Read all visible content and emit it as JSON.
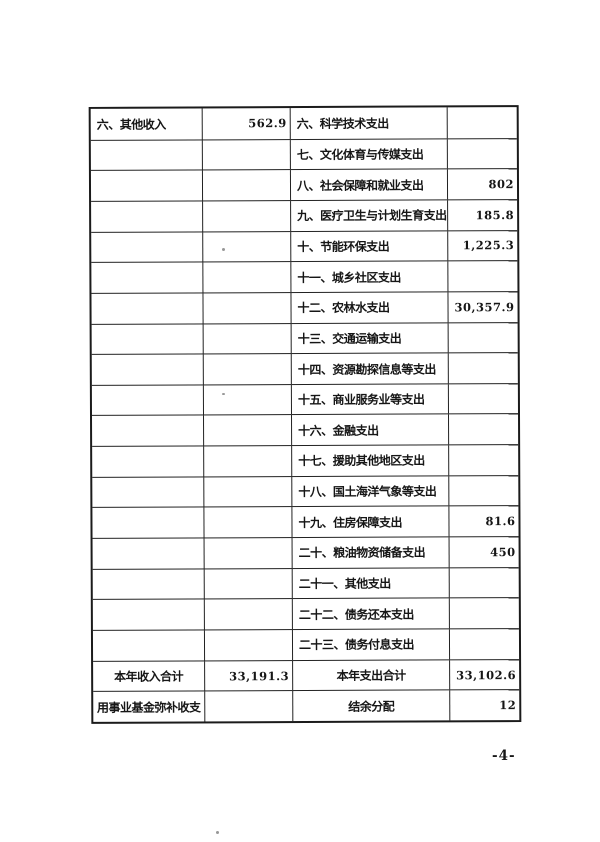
{
  "page": {
    "page_number": "-4-",
    "background_color": "#ffffff",
    "border_color": "#1b1b1b"
  },
  "table": {
    "columns": [
      "income_label",
      "income_value",
      "expenditure_label",
      "expenditure_value"
    ],
    "rows": [
      {
        "left_label": "六、其他收入",
        "left_value": "562.9",
        "right_label": "六、科学技术支出",
        "right_value": ""
      },
      {
        "left_label": "",
        "left_value": "",
        "right_label": "七、文化体育与传媒支出",
        "right_value": ""
      },
      {
        "left_label": "",
        "left_value": "",
        "right_label": "八、社会保障和就业支出",
        "right_value": "802"
      },
      {
        "left_label": "",
        "left_value": "",
        "right_label": "九、医疗卫生与计划生育支出",
        "right_value": "185.8"
      },
      {
        "left_label": "",
        "left_value": "",
        "right_label": "十、节能环保支出",
        "right_value": "1,225.3"
      },
      {
        "left_label": "",
        "left_value": "",
        "right_label": "十一、城乡社区支出",
        "right_value": ""
      },
      {
        "left_label": "",
        "left_value": "",
        "right_label": "十二、农林水支出",
        "right_value": "30,357.9"
      },
      {
        "left_label": "",
        "left_value": "",
        "right_label": "十三、交通运输支出",
        "right_value": ""
      },
      {
        "left_label": "",
        "left_value": "",
        "right_label": "十四、资源勘探信息等支出",
        "right_value": ""
      },
      {
        "left_label": "",
        "left_value": "",
        "right_label": "十五、商业服务业等支出",
        "right_value": ""
      },
      {
        "left_label": "",
        "left_value": "",
        "right_label": "十六、金融支出",
        "right_value": ""
      },
      {
        "left_label": "",
        "left_value": "",
        "right_label": "十七、援助其他地区支出",
        "right_value": ""
      },
      {
        "left_label": "",
        "left_value": "",
        "right_label": "十八、国土海洋气象等支出",
        "right_value": ""
      },
      {
        "left_label": "",
        "left_value": "",
        "right_label": "十九、住房保障支出",
        "right_value": "81.6"
      },
      {
        "left_label": "",
        "left_value": "",
        "right_label": "二十、粮油物资储备支出",
        "right_value": "450"
      },
      {
        "left_label": "",
        "left_value": "",
        "right_label": "二十一、其他支出",
        "right_value": ""
      },
      {
        "left_label": "",
        "left_value": "",
        "right_label": "二十二、债务还本支出",
        "right_value": ""
      },
      {
        "left_label": "",
        "left_value": "",
        "right_label": "二十三、债务付息支出",
        "right_value": ""
      },
      {
        "left_label": "本年收入合计",
        "left_value": "33,191.3",
        "right_label": "本年支出合计",
        "right_value": "33,102.6",
        "align": "center"
      },
      {
        "left_label": "用事业基金弥补收支",
        "left_value": "",
        "right_label": "结余分配",
        "right_value": "12",
        "align": "center"
      }
    ]
  }
}
